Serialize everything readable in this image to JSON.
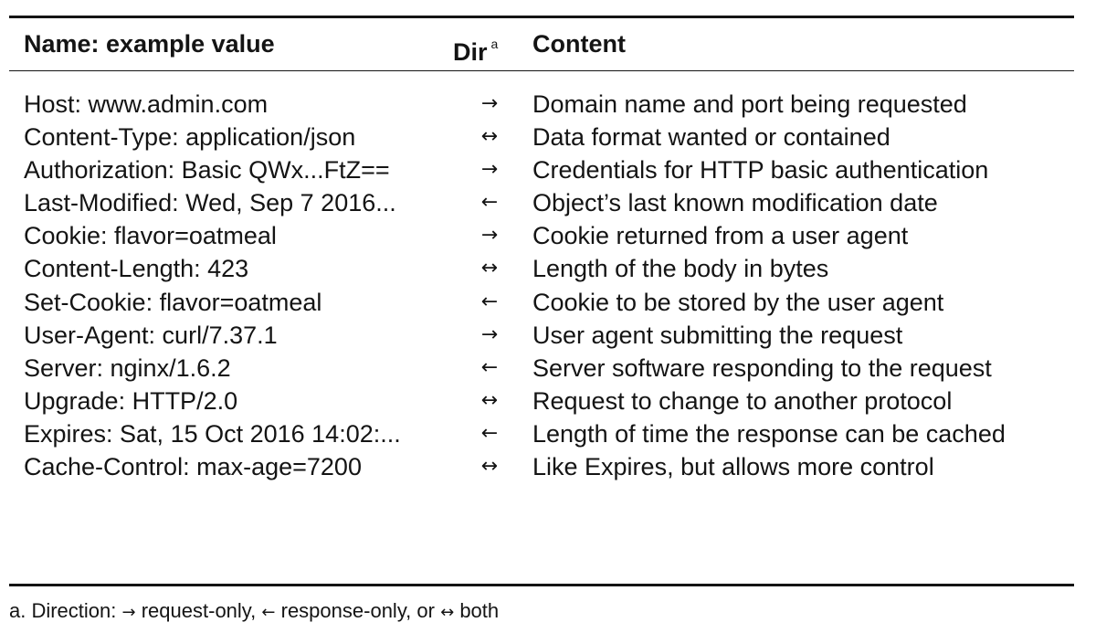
{
  "table": {
    "headers": {
      "name": "Name: example value",
      "dir": "Dir",
      "dir_superscript": "a",
      "content": "Content"
    },
    "rows": [
      {
        "name": "Host: www.admin.com",
        "dir": "→",
        "content": "Domain name and port being requested"
      },
      {
        "name": "Content-Type: application/json",
        "dir": "↔",
        "content": "Data format wanted or contained"
      },
      {
        "name": "Authorization: Basic QWx...FtZ==",
        "dir": "→",
        "content": "Credentials for HTTP basic authentication"
      },
      {
        "name": "Last-Modified: Wed, Sep 7 2016...",
        "dir": "←",
        "content": "Object’s last known modification date"
      },
      {
        "name": "Cookie: flavor=oatmeal",
        "dir": "→",
        "content": "Cookie returned from a user agent"
      },
      {
        "name": "Content-Length: 423",
        "dir": "↔",
        "content": "Length of the body in bytes"
      },
      {
        "name": "Set-Cookie: flavor=oatmeal",
        "dir": "←",
        "content": "Cookie to be stored by the user agent"
      },
      {
        "name": "User-Agent: curl/7.37.1",
        "dir": "→",
        "content": "User agent submitting the request"
      },
      {
        "name": "Server: nginx/1.6.2",
        "dir": "←",
        "content": "Server software responding to the request"
      },
      {
        "name": "Upgrade: HTTP/2.0",
        "dir": "↔",
        "content": "Request to change to another protocol"
      },
      {
        "name": "Expires: Sat, 15 Oct 2016 14:02:...",
        "dir": "←",
        "content": "Length of time the response can be cached"
      },
      {
        "name": "Cache-Control: max-age=7200",
        "dir": "↔",
        "content": "Like Expires, but allows more control"
      }
    ]
  },
  "footnote": {
    "prefix": "a. Direction:",
    "request_arrow": "→",
    "request_text": "request-only,",
    "response_arrow": "←",
    "response_text": "response-only, or",
    "both_arrow": "↔",
    "both_text": "both"
  }
}
